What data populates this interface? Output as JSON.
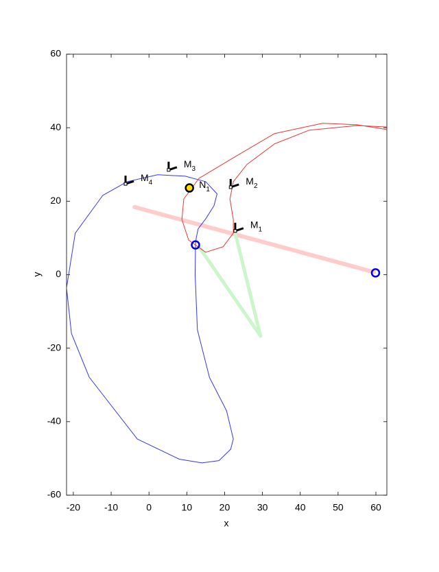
{
  "chart_data": {
    "type": "line",
    "xlabel": "x",
    "ylabel": "y",
    "xlim": [
      -21.8,
      62.9
    ],
    "ylim": [
      -60,
      60
    ],
    "xticks": [
      -20,
      -10,
      0,
      10,
      20,
      30,
      40,
      50,
      60
    ],
    "yticks": [
      -60,
      -40,
      -20,
      0,
      20,
      40,
      60
    ],
    "series": [
      {
        "color": "#ffcccc",
        "linewidth": 6,
        "x": [
          -3.8,
          59.5
        ],
        "values": [
          18.4,
          0.7
        ]
      },
      {
        "color": "#ccf5cc",
        "linewidth": 5,
        "x": [
          13.2,
          29.5,
          22.8
        ],
        "values": [
          7.6,
          -16.7,
          11.3
        ]
      },
      {
        "color": "#3333ff",
        "linewidth": 1,
        "x": [
          12.3,
          12.5,
          13.0,
          15.0,
          17.2,
          18.0,
          15.0,
          9.6,
          2.3,
          -5.8,
          -12.2,
          -19.5,
          -21.8,
          -20.5,
          -15.8,
          -3.1,
          8.0,
          14.0,
          18.5,
          21.6,
          22.3,
          20.5,
          16.0,
          12.8,
          12.2,
          12.3
        ],
        "values": [
          8.1,
          10.0,
          12.5,
          15.2,
          18.8,
          22.0,
          25.3,
          26.8,
          27.2,
          25.3,
          21.6,
          11.3,
          -3.6,
          -16.0,
          -27.9,
          -44.7,
          -50.2,
          -51.2,
          -50.6,
          -47.5,
          -44.7,
          -37.0,
          -28.0,
          -15.0,
          0.0,
          8.1
        ]
      },
      {
        "color": "#ee3333",
        "linewidth": 1,
        "x": [
          62.9,
          55.0,
          45.9,
          33.2,
          22.3,
          13.2,
          9.2,
          8.7,
          10.5,
          15.0,
          19.6,
          22.3,
          22.3,
          21.4,
          22.3,
          25.9,
          33.2,
          42.3,
          55.0,
          62.9
        ],
        "values": [
          39.5,
          40.8,
          41.2,
          38.4,
          31.8,
          26.2,
          20.6,
          15.0,
          9.4,
          6.1,
          7.6,
          11.3,
          15.0,
          20.6,
          25.3,
          30.0,
          35.6,
          39.3,
          40.6,
          40.2
        ]
      }
    ],
    "points": [
      {
        "x": 12.3,
        "y": 8.1,
        "color": "#0000ee",
        "fill": "none"
      },
      {
        "x": 59.9,
        "y": 0.5,
        "color": "#0000ee",
        "fill": "none"
      },
      {
        "x": 10.7,
        "y": 23.6,
        "color": "#000000",
        "fill": "#ffe000",
        "label": "N",
        "subscript": "1"
      }
    ],
    "frames": [
      {
        "x": 22.8,
        "y": 11.9,
        "label": "M",
        "subscript": "1"
      },
      {
        "x": 21.6,
        "y": 23.8,
        "label": "M",
        "subscript": "2"
      },
      {
        "x": 5.2,
        "y": 28.5,
        "label": "M",
        "subscript": "3"
      },
      {
        "x": -6.2,
        "y": 24.7,
        "label": "M",
        "subscript": "4"
      }
    ]
  }
}
